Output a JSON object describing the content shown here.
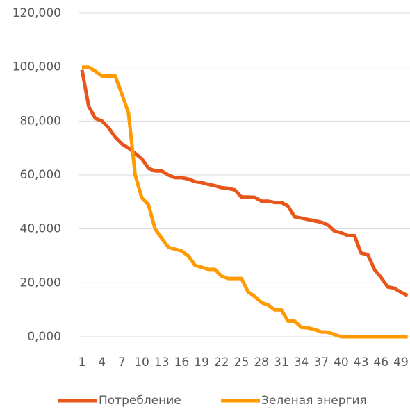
{
  "chart_data": {
    "type": "line",
    "categories": [
      "1",
      null,
      null,
      "4",
      null,
      null,
      "7",
      null,
      null,
      "10",
      null,
      null,
      "13",
      null,
      null,
      "16",
      null,
      null,
      "19",
      null,
      null,
      "22",
      null,
      null,
      "25",
      null,
      null,
      "28",
      null,
      null,
      "31",
      null,
      null,
      "34",
      null,
      null,
      "37",
      null,
      null,
      "40",
      null,
      null,
      "43",
      null,
      null,
      "46",
      null,
      null,
      "49",
      null
    ],
    "series": [
      {
        "name": "Потребление",
        "color": "#e8561b",
        "values": [
          99000,
          85500,
          81000,
          80000,
          77500,
          74000,
          71500,
          70000,
          68000,
          66000,
          62500,
          61500,
          61500,
          60000,
          59000,
          59000,
          58500,
          57500,
          57200,
          56500,
          56000,
          55300,
          55000,
          54500,
          51800,
          51800,
          51700,
          50300,
          50300,
          49800,
          49800,
          48500,
          44500,
          44000,
          43500,
          43000,
          42500,
          41500,
          39200,
          38600,
          37500,
          37500,
          31000,
          30500,
          25000,
          22000,
          18500,
          18000,
          16500,
          15300
        ]
      },
      {
        "name": "Зеленая энергия",
        "color": "#ff9a00",
        "values": [
          100000,
          100000,
          98500,
          96700,
          96700,
          96700,
          90000,
          83000,
          60000,
          51500,
          49000,
          40000,
          36500,
          33200,
          32500,
          31800,
          30000,
          26500,
          25800,
          25000,
          25000,
          22500,
          21600,
          21600,
          21600,
          16600,
          15000,
          12700,
          11800,
          10000,
          10000,
          5800,
          5800,
          3500,
          3300,
          2700,
          1800,
          1700,
          800,
          0,
          0,
          0,
          0,
          0,
          0,
          0,
          0,
          0,
          0,
          0
        ]
      }
    ],
    "ylim": [
      0,
      120000
    ],
    "yticks": [
      {
        "value": 0,
        "label": "0,000"
      },
      {
        "value": 20000,
        "label": "20,000"
      },
      {
        "value": 40000,
        "label": "40,000"
      },
      {
        "value": 60000,
        "label": "60,000"
      },
      {
        "value": 80000,
        "label": "80,000"
      },
      {
        "value": 100000,
        "label": "100,000"
      },
      {
        "value": 120000,
        "label": "120,000"
      }
    ],
    "grid": true,
    "legend": "bottom"
  }
}
